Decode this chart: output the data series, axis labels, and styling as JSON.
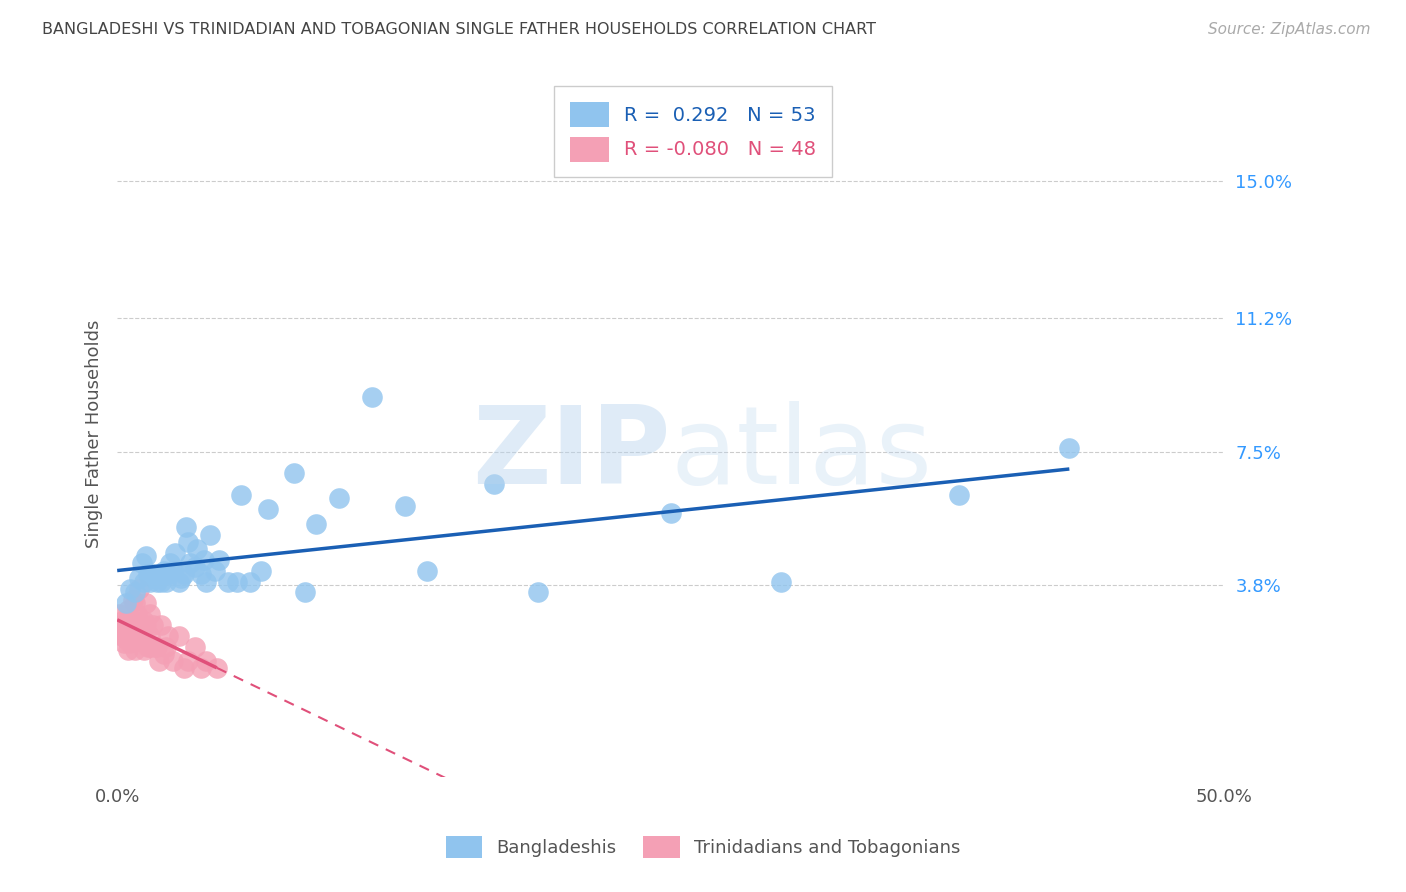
{
  "title": "BANGLADESHI VS TRINIDADIAN AND TOBAGONIAN SINGLE FATHER HOUSEHOLDS CORRELATION CHART",
  "source": "Source: ZipAtlas.com",
  "ylabel": "Single Father Households",
  "xlim": [
    0.0,
    0.5
  ],
  "ylim": [
    -0.015,
    0.175
  ],
  "ytick_labels": [
    "3.8%",
    "7.5%",
    "11.2%",
    "15.0%"
  ],
  "ytick_values": [
    0.038,
    0.075,
    0.112,
    0.15
  ],
  "xtick_labels": [
    "0.0%",
    "50.0%"
  ],
  "xtick_values": [
    0.0,
    0.5
  ],
  "blue_R": "0.292",
  "blue_N": "53",
  "pink_R": "-0.080",
  "pink_N": "48",
  "legend_blue": "Bangladeshis",
  "legend_pink": "Trinidadians and Tobagonians",
  "blue_color": "#90C4EE",
  "pink_color": "#F4A0B5",
  "blue_line_color": "#1A5FB4",
  "pink_line_color": "#E0507A",
  "pink_dash_color": "#E0507A",
  "background_color": "#ffffff",
  "blue_scatter_x": [
    0.004,
    0.006,
    0.008,
    0.01,
    0.011,
    0.012,
    0.013,
    0.014,
    0.015,
    0.016,
    0.017,
    0.018,
    0.019,
    0.02,
    0.021,
    0.022,
    0.023,
    0.024,
    0.025,
    0.026,
    0.028,
    0.029,
    0.03,
    0.031,
    0.032,
    0.033,
    0.035,
    0.036,
    0.038,
    0.039,
    0.04,
    0.042,
    0.044,
    0.046,
    0.05,
    0.054,
    0.056,
    0.06,
    0.065,
    0.068,
    0.08,
    0.085,
    0.09,
    0.1,
    0.115,
    0.13,
    0.14,
    0.17,
    0.19,
    0.25,
    0.3,
    0.38,
    0.43
  ],
  "blue_scatter_y": [
    0.033,
    0.037,
    0.036,
    0.04,
    0.044,
    0.039,
    0.046,
    0.041,
    0.039,
    0.041,
    0.04,
    0.039,
    0.041,
    0.039,
    0.042,
    0.039,
    0.041,
    0.044,
    0.042,
    0.047,
    0.039,
    0.04,
    0.041,
    0.054,
    0.05,
    0.044,
    0.043,
    0.048,
    0.041,
    0.045,
    0.039,
    0.052,
    0.042,
    0.045,
    0.039,
    0.039,
    0.063,
    0.039,
    0.042,
    0.059,
    0.069,
    0.036,
    0.055,
    0.062,
    0.09,
    0.06,
    0.042,
    0.066,
    0.036,
    0.058,
    0.039,
    0.063,
    0.076
  ],
  "pink_scatter_x": [
    0.001,
    0.001,
    0.002,
    0.002,
    0.003,
    0.003,
    0.004,
    0.004,
    0.005,
    0.005,
    0.006,
    0.006,
    0.007,
    0.007,
    0.007,
    0.008,
    0.008,
    0.008,
    0.009,
    0.009,
    0.01,
    0.01,
    0.01,
    0.011,
    0.012,
    0.012,
    0.013,
    0.013,
    0.014,
    0.015,
    0.015,
    0.015,
    0.016,
    0.017,
    0.018,
    0.019,
    0.02,
    0.021,
    0.022,
    0.023,
    0.025,
    0.028,
    0.03,
    0.032,
    0.035,
    0.038,
    0.04,
    0.045
  ],
  "pink_scatter_y": [
    0.027,
    0.03,
    0.024,
    0.028,
    0.022,
    0.025,
    0.023,
    0.027,
    0.02,
    0.031,
    0.022,
    0.027,
    0.034,
    0.028,
    0.024,
    0.02,
    0.028,
    0.033,
    0.024,
    0.03,
    0.024,
    0.027,
    0.037,
    0.024,
    0.02,
    0.028,
    0.027,
    0.033,
    0.021,
    0.021,
    0.03,
    0.024,
    0.027,
    0.021,
    0.021,
    0.017,
    0.027,
    0.019,
    0.021,
    0.024,
    0.017,
    0.024,
    0.015,
    0.017,
    0.021,
    0.015,
    0.017,
    0.015
  ]
}
